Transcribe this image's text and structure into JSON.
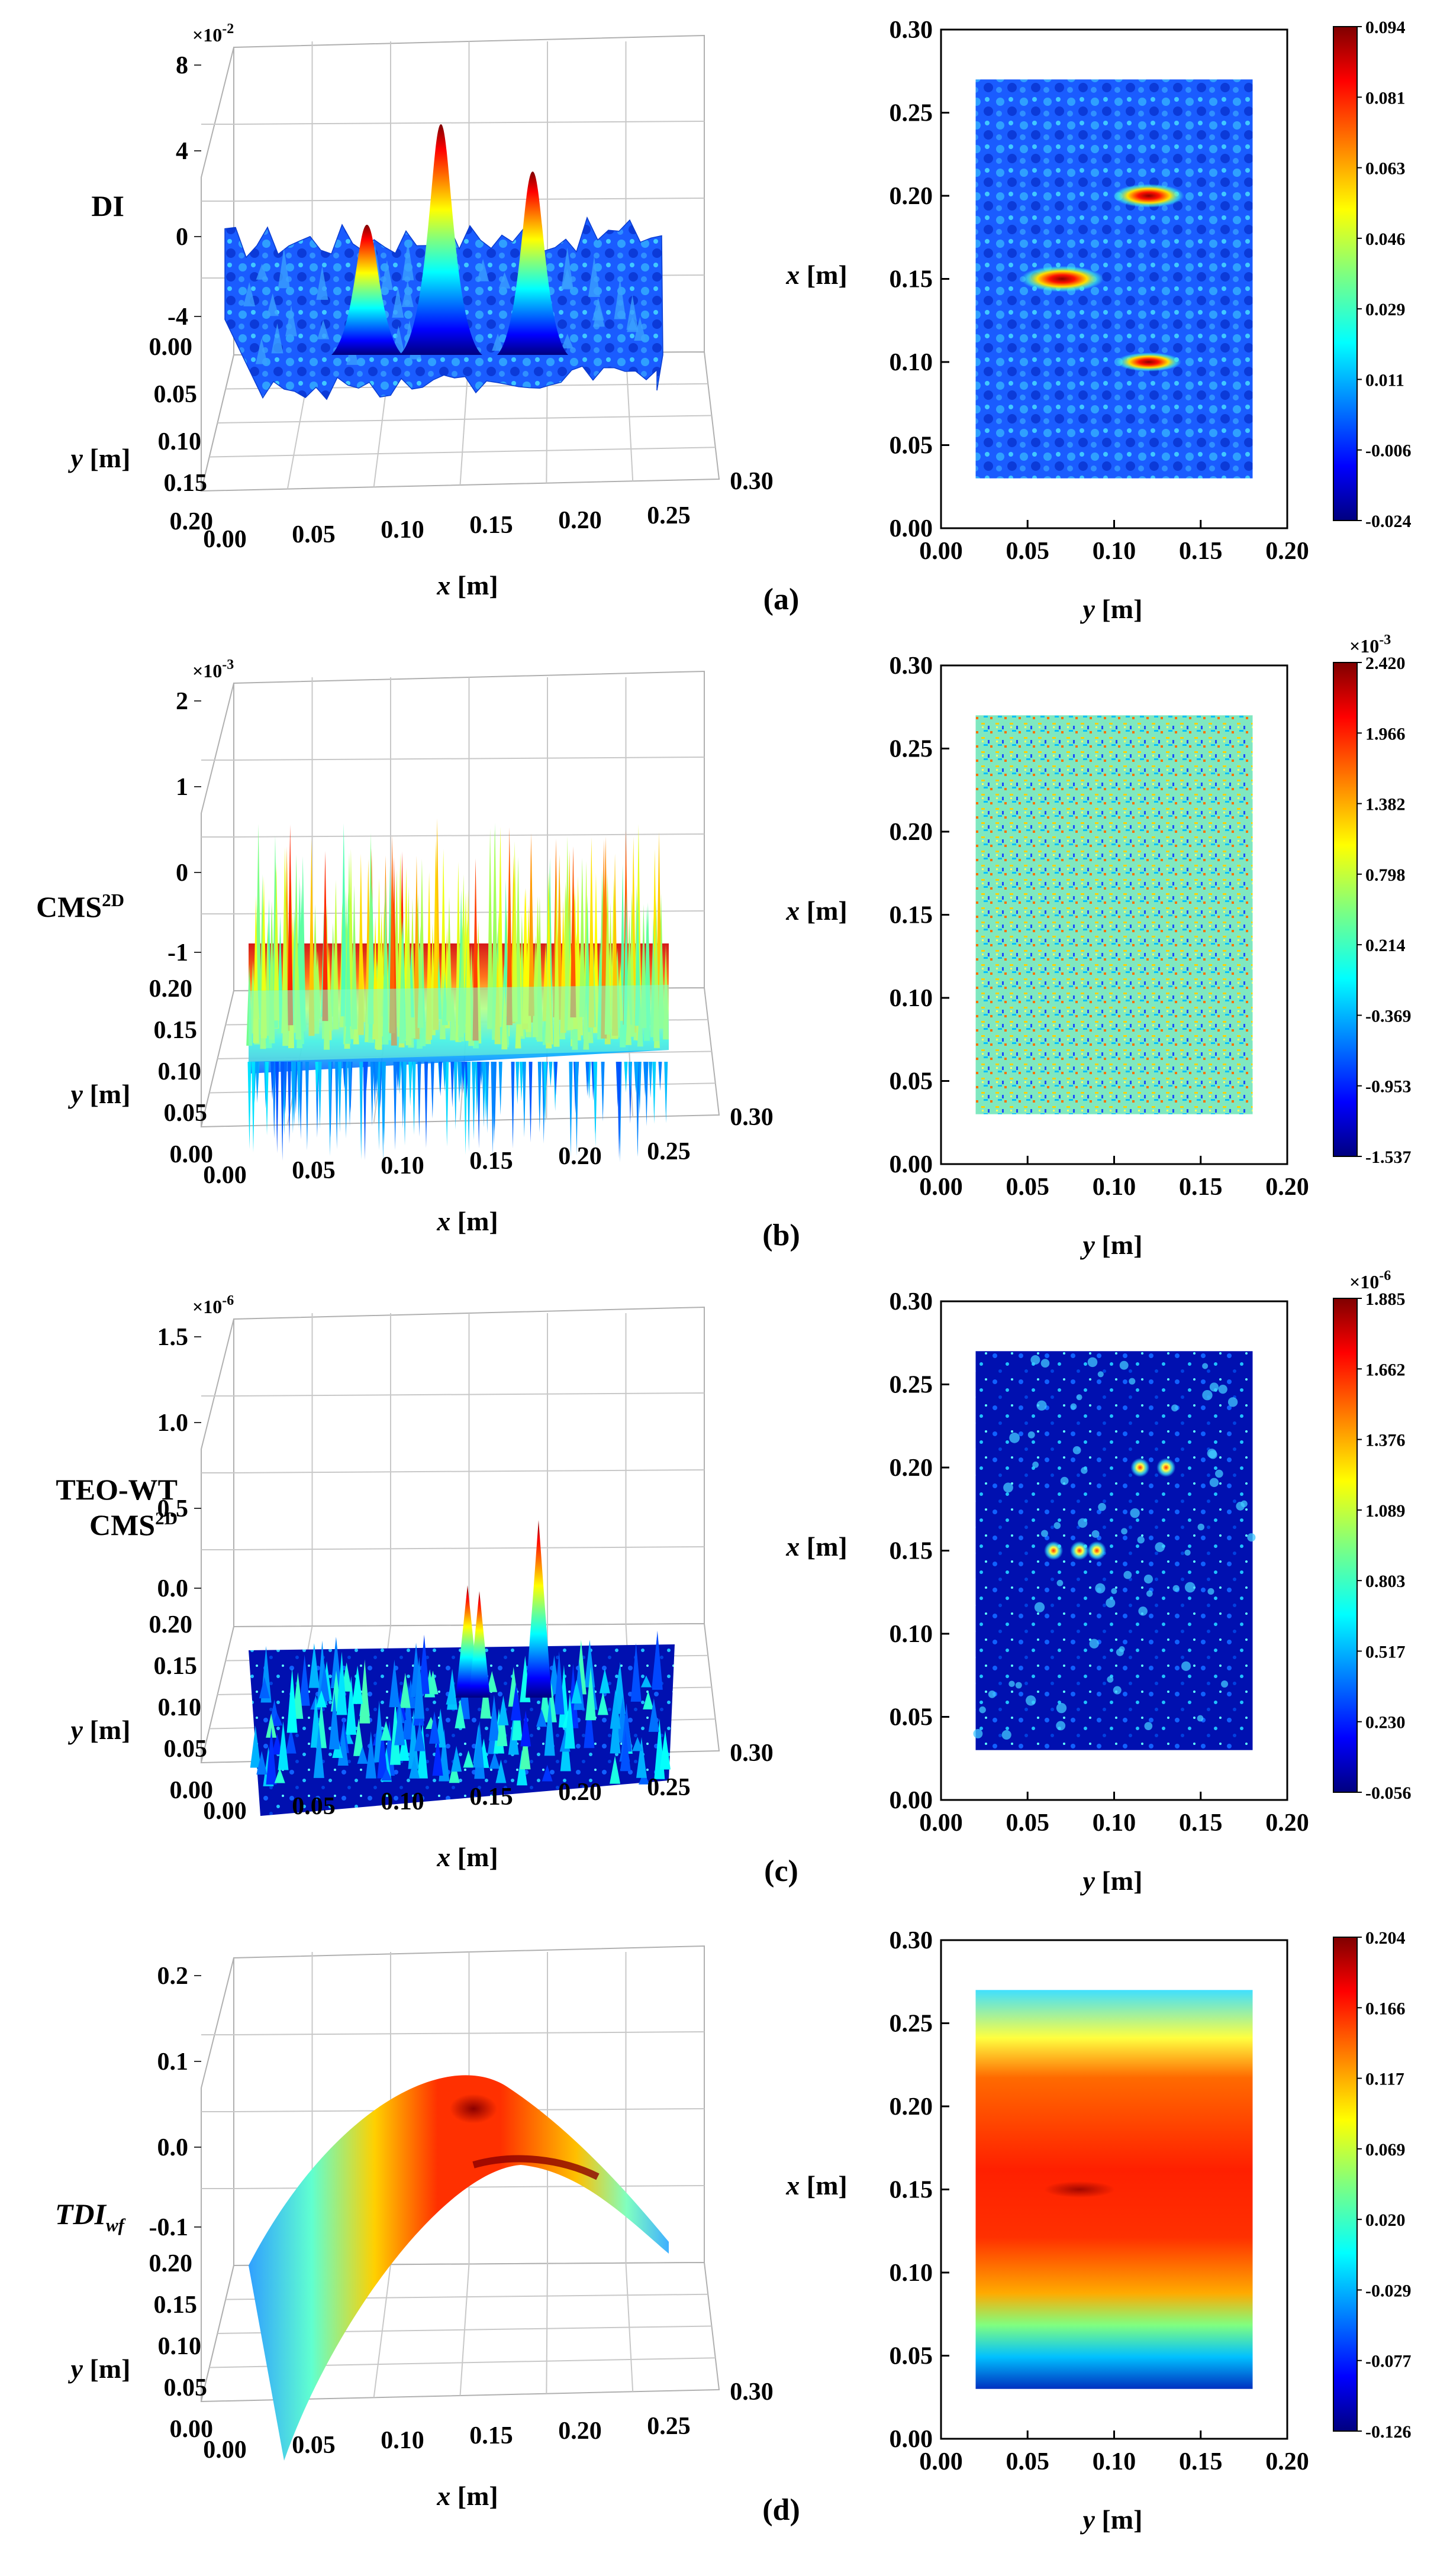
{
  "chart_data": [
    {
      "panel": "(a)",
      "type": "surface+heatmap",
      "z_label_main": "DI",
      "z_label_sup": "",
      "z_label_sub": "",
      "z_label_line2_main": "",
      "z_label_line2_sup": "",
      "z_scale_base": "×10",
      "z_scale_exp": "-2",
      "z_ticks": [
        "8",
        "4",
        "0",
        "-4"
      ],
      "surface_x_ticks": [
        "0.00",
        "0.05",
        "0.10",
        "0.15",
        "0.20",
        "0.25",
        "0.30"
      ],
      "surface_y_ticks": [
        "0.00",
        "0.05",
        "0.10",
        "0.15",
        "0.20"
      ],
      "surface_x_label_main": "x",
      "surface_x_label_unit": " [m]",
      "surface_y_label_main": "y",
      "surface_y_label_unit": " [m]",
      "map_x_ticks": [
        "0.00",
        "0.05",
        "0.10",
        "0.15",
        "0.20",
        "0.25",
        "0.30"
      ],
      "map_y_ticks": [
        "0.00",
        "0.05",
        "0.10",
        "0.15",
        "0.20"
      ],
      "map_xlim": [
        0,
        0.3
      ],
      "map_ylim": [
        0,
        0.2
      ],
      "map_ylabel_main": "x",
      "map_ylabel_unit": " [m]",
      "map_xlabel_main": "y",
      "map_xlabel_unit": " [m]",
      "colorbar_scale_base": "",
      "colorbar_scale_exp": "",
      "colorbar_ticks": [
        "0.094",
        "0.081",
        "0.063",
        "0.046",
        "0.029",
        "0.011",
        "-0.006",
        "-0.024"
      ],
      "colorbar_range": [
        -0.024,
        0.094
      ]
    },
    {
      "panel": "(b)",
      "type": "surface+heatmap",
      "z_label_main": "CMS",
      "z_label_sup": "2D",
      "z_label_sub": "",
      "z_label_line2_main": "",
      "z_label_line2_sup": "",
      "z_scale_base": "×10",
      "z_scale_exp": "-3",
      "z_ticks": [
        "2",
        "1",
        "0",
        "-1"
      ],
      "surface_x_ticks": [
        "0.00",
        "0.05",
        "0.10",
        "0.15",
        "0.20",
        "0.25",
        "0.30"
      ],
      "surface_y_ticks": [
        "0.20",
        "0.15",
        "0.10",
        "0.05",
        "0.00"
      ],
      "surface_x_label_main": "x",
      "surface_x_label_unit": " [m]",
      "surface_y_label_main": "y",
      "surface_y_label_unit": " [m]",
      "map_x_ticks": [
        "0.00",
        "0.05",
        "0.10",
        "0.15",
        "0.20",
        "0.25",
        "0.30"
      ],
      "map_y_ticks": [
        "0.00",
        "0.05",
        "0.10",
        "0.15",
        "0.20"
      ],
      "map_xlim": [
        0,
        0.3
      ],
      "map_ylim": [
        0,
        0.2
      ],
      "map_ylabel_main": "x",
      "map_ylabel_unit": " [m]",
      "map_xlabel_main": "y",
      "map_xlabel_unit": " [m]",
      "colorbar_scale_base": "×10",
      "colorbar_scale_exp": "-3",
      "colorbar_ticks": [
        "2.420",
        "1.966",
        "1.382",
        "0.798",
        "0.214",
        "-0.369",
        "-0.953",
        "-1.537"
      ],
      "colorbar_range": [
        -1.537,
        2.42
      ]
    },
    {
      "panel": "(c)",
      "type": "surface+heatmap",
      "z_label_main": "TEO-WT",
      "z_label_sup": "",
      "z_label_sub": "",
      "z_label_line2_main": "CMS",
      "z_label_line2_sup": "2D",
      "z_scale_base": "×10",
      "z_scale_exp": "-6",
      "z_ticks": [
        "1.5",
        "1.0",
        "0.5",
        "0.0"
      ],
      "surface_x_ticks": [
        "0.00",
        "0.05",
        "0.10",
        "0.15",
        "0.20",
        "0.25",
        "0.30"
      ],
      "surface_y_ticks": [
        "0.20",
        "0.15",
        "0.10",
        "0.05",
        "0.00"
      ],
      "surface_x_label_main": "x",
      "surface_x_label_unit": " [m]",
      "surface_y_label_main": "y",
      "surface_y_label_unit": " [m]",
      "map_x_ticks": [
        "0.00",
        "0.05",
        "0.10",
        "0.15",
        "0.20",
        "0.25",
        "0.30"
      ],
      "map_y_ticks": [
        "0.00",
        "0.05",
        "0.10",
        "0.15",
        "0.20"
      ],
      "map_xlim": [
        0,
        0.3
      ],
      "map_ylim": [
        0,
        0.2
      ],
      "map_ylabel_main": "x",
      "map_ylabel_unit": " [m]",
      "map_xlabel_main": "y",
      "map_xlabel_unit": " [m]",
      "colorbar_scale_base": "×10",
      "colorbar_scale_exp": "-6",
      "colorbar_ticks": [
        "1.885",
        "1.662",
        "1.376",
        "1.089",
        "0.803",
        "0.517",
        "0.230",
        "-0.056"
      ],
      "colorbar_range": [
        -0.056,
        1.885
      ]
    },
    {
      "panel": "(d)",
      "type": "surface+heatmap",
      "z_label_main": "TDI",
      "z_label_sup": "",
      "z_label_sub": "wf",
      "z_label_line2_main": "",
      "z_label_line2_sup": "",
      "z_scale_base": "",
      "z_scale_exp": "",
      "z_ticks": [
        "0.2",
        "0.1",
        "0.0",
        "-0.1"
      ],
      "surface_x_ticks": [
        "0.00",
        "0.05",
        "0.10",
        "0.15",
        "0.20",
        "0.25",
        "0.30"
      ],
      "surface_y_ticks": [
        "0.20",
        "0.15",
        "0.10",
        "0.05",
        "0.00"
      ],
      "surface_x_label_main": "x",
      "surface_x_label_unit": " [m]",
      "surface_y_label_main": "y",
      "surface_y_label_unit": " [m]",
      "map_x_ticks": [
        "0.00",
        "0.05",
        "0.10",
        "0.15",
        "0.20",
        "0.25",
        "0.30"
      ],
      "map_y_ticks": [
        "0.00",
        "0.05",
        "0.10",
        "0.15",
        "0.20"
      ],
      "map_xlim": [
        0,
        0.3
      ],
      "map_ylim": [
        0,
        0.2
      ],
      "map_ylabel_main": "x",
      "map_ylabel_unit": " [m]",
      "map_xlabel_main": "y",
      "map_xlabel_unit": " [m]",
      "colorbar_scale_base": "",
      "colorbar_scale_exp": "",
      "colorbar_ticks": [
        "0.204",
        "0.166",
        "0.117",
        "0.069",
        "0.020",
        "-0.029",
        "-0.077",
        "-0.126"
      ],
      "colorbar_range": [
        -0.126,
        0.204
      ]
    }
  ]
}
